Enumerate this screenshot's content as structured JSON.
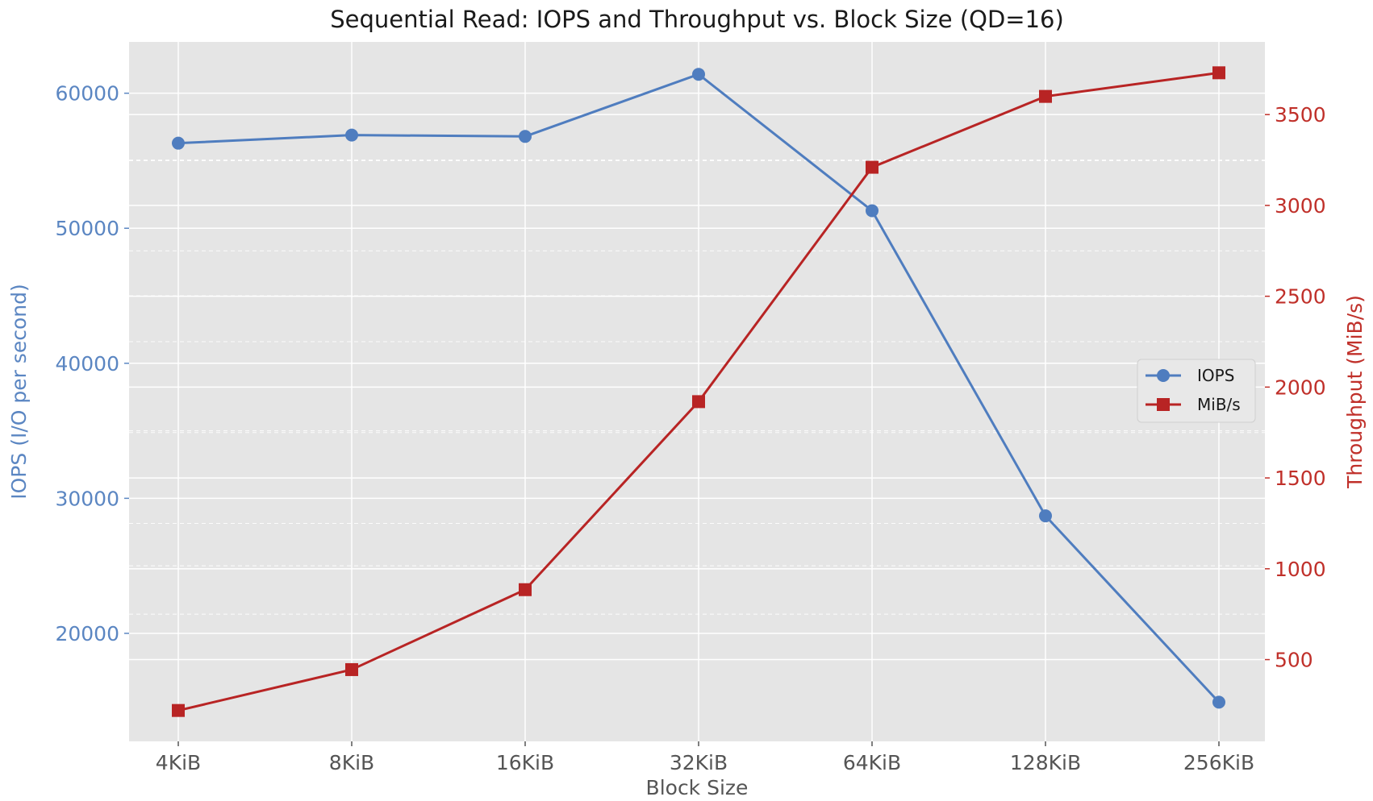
{
  "chart_data": {
    "type": "line",
    "title": "Sequential Read: IOPS and Throughput vs. Block Size (QD=16)",
    "xlabel": "Block Size",
    "categories": [
      "4KiB",
      "8KiB",
      "16KiB",
      "32KiB",
      "64KiB",
      "128KiB",
      "256KiB"
    ],
    "y_left": {
      "label": "IOPS (I/O per second)",
      "lim": [
        12000,
        63800
      ],
      "ticks": [
        20000,
        30000,
        40000,
        50000,
        60000
      ],
      "minor_ticks": [
        25000,
        35000,
        45000,
        55000
      ]
    },
    "y_right": {
      "label": "Throughput (MiB/s)",
      "lim": [
        50,
        3900
      ],
      "ticks": [
        500,
        1000,
        1500,
        2000,
        2500,
        3000,
        3500
      ],
      "minor_ticks": [
        750,
        1250,
        1750,
        2250,
        2750,
        3250
      ]
    },
    "series": [
      {
        "name": "IOPS",
        "axis": "left",
        "marker": "circle",
        "color": "#4f7dbf",
        "values": [
          56300,
          56900,
          56800,
          61400,
          51300,
          28700,
          14900
        ]
      },
      {
        "name": "MiB/s",
        "axis": "right",
        "marker": "square",
        "color": "#b82424",
        "values": [
          220,
          445,
          885,
          1920,
          3210,
          3600,
          3730
        ]
      }
    ],
    "grid": true,
    "legend_position": "center-right",
    "colors": {
      "background": "#e5e5e5",
      "grid": "#ffffff",
      "left_axis": "#5b86c2",
      "right_axis": "#c0302a",
      "text": "#555555"
    }
  }
}
